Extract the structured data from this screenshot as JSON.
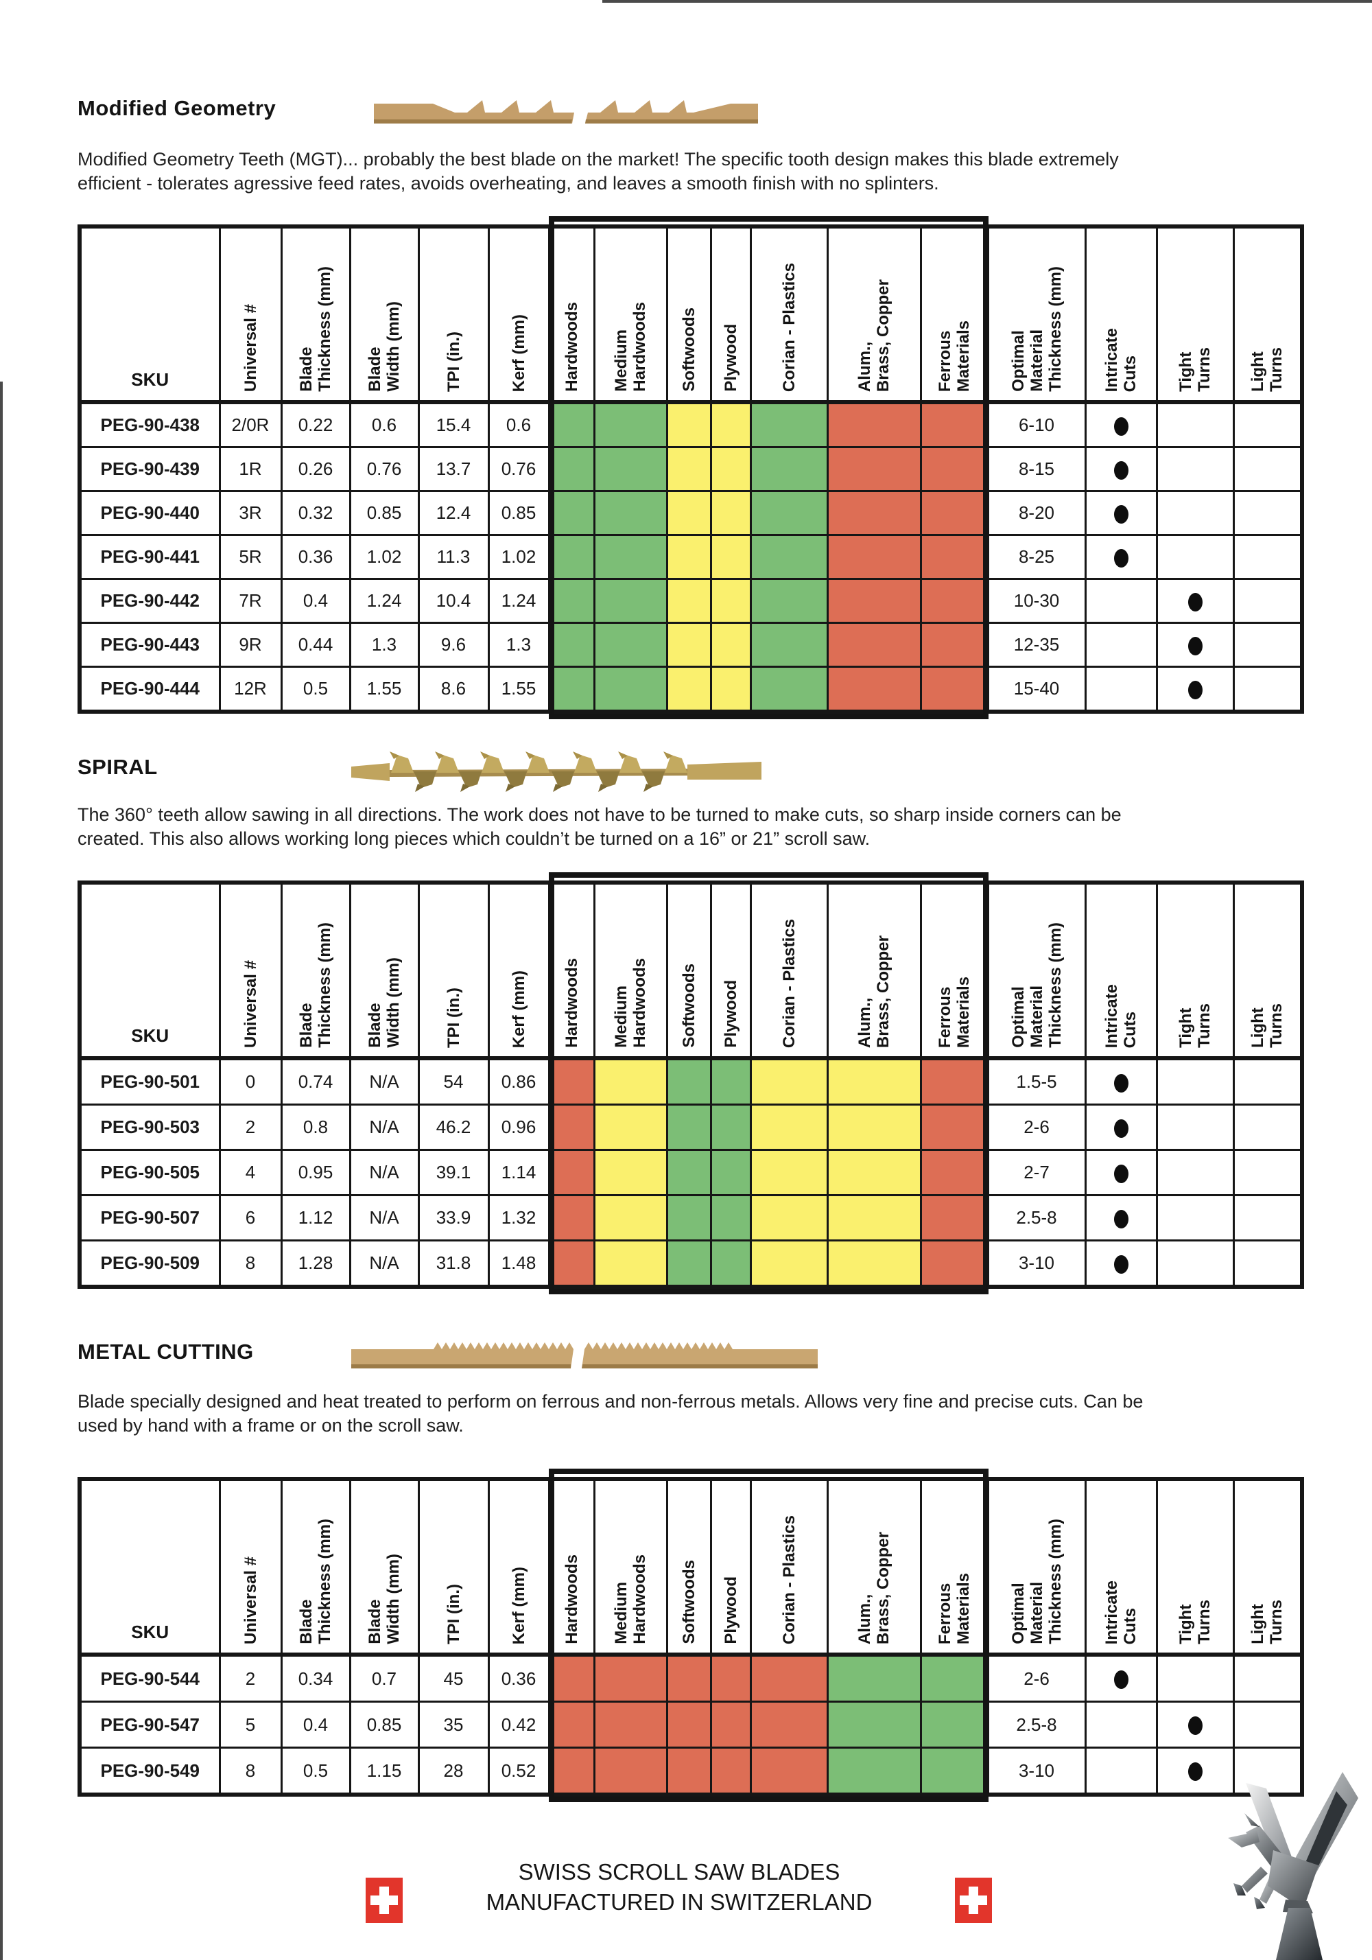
{
  "page": {
    "footer": {
      "line1": "SWISS SCROLL SAW BLADES",
      "line2": "MANUFACTURED IN SWITZERLAND"
    }
  },
  "legend_colors": {
    "G": "#7cbe76",
    "Y": "#faf06e",
    "R": "#dd6e55"
  },
  "table_columns": [
    {
      "key": "sku",
      "label": "SKU",
      "orientation": "horizontal"
    },
    {
      "key": "universal",
      "label": "Universal #",
      "orientation": "vertical"
    },
    {
      "key": "blade_thickness",
      "label": "Blade\nThickness (mm)",
      "orientation": "vertical"
    },
    {
      "key": "blade_width",
      "label": "Blade\nWidth (mm)",
      "orientation": "vertical"
    },
    {
      "key": "tpi",
      "label": "TPI (in.)",
      "orientation": "vertical"
    },
    {
      "key": "kerf",
      "label": "Kerf (mm)",
      "orientation": "vertical"
    },
    {
      "key": "hardwoods",
      "label": "Hardwoods",
      "orientation": "vertical",
      "material_index": 0
    },
    {
      "key": "medium_hardwoods",
      "label": "Medium\nHardwoods",
      "orientation": "vertical",
      "material_index": 1
    },
    {
      "key": "softwoods",
      "label": "Softwoods",
      "orientation": "vertical",
      "material_index": 2
    },
    {
      "key": "plywood",
      "label": "Plywood",
      "orientation": "vertical",
      "material_index": 3
    },
    {
      "key": "corian_plastics",
      "label": "Corian - Plastics",
      "orientation": "vertical",
      "material_index": 4
    },
    {
      "key": "alum_brass_copper",
      "label": "Alum.,\nBrass, Copper",
      "orientation": "vertical",
      "material_index": 5
    },
    {
      "key": "ferrous_materials",
      "label": "Ferrous\nMaterials",
      "orientation": "vertical",
      "material_index": 6
    },
    {
      "key": "optimal",
      "label": "Optimal\nMaterial\nThickness (mm)",
      "orientation": "vertical"
    },
    {
      "key": "intricate",
      "label": "Intricate\nCuts",
      "orientation": "vertical",
      "dot": true
    },
    {
      "key": "tight",
      "label": "Tight\nTurns",
      "orientation": "vertical",
      "dot": true
    },
    {
      "key": "light",
      "label": "Light\nTurns",
      "orientation": "vertical",
      "dot": true
    }
  ],
  "sections": [
    {
      "title": "Modified Geometry",
      "description": "Modified Geometry Teeth (MGT)... probably the best blade on the market! The specific tooth design makes this blade extremely\nefficient - tolerates agressive feed rates, avoids overheating, and leaves a smooth finish with no splinters.",
      "rows": [
        {
          "sku": "PEG-90-438",
          "universal": "2/0R",
          "blade_thickness": "0.22",
          "blade_width": "0.6",
          "tpi": "15.4",
          "kerf": "0.6",
          "materials": [
            "G",
            "G",
            "Y",
            "Y",
            "G",
            "R",
            "R"
          ],
          "optimal": "6-10",
          "intricate": true,
          "tight": false,
          "light": false
        },
        {
          "sku": "PEG-90-439",
          "universal": "1R",
          "blade_thickness": "0.26",
          "blade_width": "0.76",
          "tpi": "13.7",
          "kerf": "0.76",
          "materials": [
            "G",
            "G",
            "Y",
            "Y",
            "G",
            "R",
            "R"
          ],
          "optimal": "8-15",
          "intricate": true,
          "tight": false,
          "light": false
        },
        {
          "sku": "PEG-90-440",
          "universal": "3R",
          "blade_thickness": "0.32",
          "blade_width": "0.85",
          "tpi": "12.4",
          "kerf": "0.85",
          "materials": [
            "G",
            "G",
            "Y",
            "Y",
            "G",
            "R",
            "R"
          ],
          "optimal": "8-20",
          "intricate": true,
          "tight": false,
          "light": false
        },
        {
          "sku": "PEG-90-441",
          "universal": "5R",
          "blade_thickness": "0.36",
          "blade_width": "1.02",
          "tpi": "11.3",
          "kerf": "1.02",
          "materials": [
            "G",
            "G",
            "Y",
            "Y",
            "G",
            "R",
            "R"
          ],
          "optimal": "8-25",
          "intricate": true,
          "tight": false,
          "light": false
        },
        {
          "sku": "PEG-90-442",
          "universal": "7R",
          "blade_thickness": "0.4",
          "blade_width": "1.24",
          "tpi": "10.4",
          "kerf": "1.24",
          "materials": [
            "G",
            "G",
            "Y",
            "Y",
            "G",
            "R",
            "R"
          ],
          "optimal": "10-30",
          "intricate": false,
          "tight": true,
          "light": false
        },
        {
          "sku": "PEG-90-443",
          "universal": "9R",
          "blade_thickness": "0.44",
          "blade_width": "1.3",
          "tpi": "9.6",
          "kerf": "1.3",
          "materials": [
            "G",
            "G",
            "Y",
            "Y",
            "G",
            "R",
            "R"
          ],
          "optimal": "12-35",
          "intricate": false,
          "tight": true,
          "light": false
        },
        {
          "sku": "PEG-90-444",
          "universal": "12R",
          "blade_thickness": "0.5",
          "blade_width": "1.55",
          "tpi": "8.6",
          "kerf": "1.55",
          "materials": [
            "G",
            "G",
            "Y",
            "Y",
            "G",
            "R",
            "R"
          ],
          "optimal": "15-40",
          "intricate": false,
          "tight": true,
          "light": false
        }
      ]
    },
    {
      "title": "SPIRAL",
      "description": "The 360° teeth allow sawing in all directions. The work does not have to be turned to make cuts, so sharp inside corners can be\ncreated. This also allows working long pieces which couldn’t be turned on a 16” or 21” scroll saw.",
      "rows": [
        {
          "sku": "PEG-90-501",
          "universal": "0",
          "blade_thickness": "0.74",
          "blade_width": "N/A",
          "tpi": "54",
          "kerf": "0.86",
          "materials": [
            "R",
            "Y",
            "G",
            "G",
            "Y",
            "Y",
            "R"
          ],
          "optimal": "1.5-5",
          "intricate": true,
          "tight": false,
          "light": false
        },
        {
          "sku": "PEG-90-503",
          "universal": "2",
          "blade_thickness": "0.8",
          "blade_width": "N/A",
          "tpi": "46.2",
          "kerf": "0.96",
          "materials": [
            "R",
            "Y",
            "G",
            "G",
            "Y",
            "Y",
            "R"
          ],
          "optimal": "2-6",
          "intricate": true,
          "tight": false,
          "light": false
        },
        {
          "sku": "PEG-90-505",
          "universal": "4",
          "blade_thickness": "0.95",
          "blade_width": "N/A",
          "tpi": "39.1",
          "kerf": "1.14",
          "materials": [
            "R",
            "Y",
            "G",
            "G",
            "Y",
            "Y",
            "R"
          ],
          "optimal": "2-7",
          "intricate": true,
          "tight": false,
          "light": false
        },
        {
          "sku": "PEG-90-507",
          "universal": "6",
          "blade_thickness": "1.12",
          "blade_width": "N/A",
          "tpi": "33.9",
          "kerf": "1.32",
          "materials": [
            "R",
            "Y",
            "G",
            "G",
            "Y",
            "Y",
            "R"
          ],
          "optimal": "2.5-8",
          "intricate": true,
          "tight": false,
          "light": false
        },
        {
          "sku": "PEG-90-509",
          "universal": "8",
          "blade_thickness": "1.28",
          "blade_width": "N/A",
          "tpi": "31.8",
          "kerf": "1.48",
          "materials": [
            "R",
            "Y",
            "G",
            "G",
            "Y",
            "Y",
            "R"
          ],
          "optimal": "3-10",
          "intricate": true,
          "tight": false,
          "light": false
        }
      ]
    },
    {
      "title": "METAL CUTTING",
      "description": "Blade specially designed and heat treated to perform on ferrous and non-ferrous metals. Allows very fine and precise cuts. Can be\nused by hand with a frame or on the scroll saw.",
      "rows": [
        {
          "sku": "PEG-90-544",
          "universal": "2",
          "blade_thickness": "0.34",
          "blade_width": "0.7",
          "tpi": "45",
          "kerf": "0.36",
          "materials": [
            "R",
            "R",
            "R",
            "R",
            "R",
            "G",
            "G"
          ],
          "optimal": "2-6",
          "intricate": true,
          "tight": false,
          "light": false
        },
        {
          "sku": "PEG-90-547",
          "universal": "5",
          "blade_thickness": "0.4",
          "blade_width": "0.85",
          "tpi": "35",
          "kerf": "0.42",
          "materials": [
            "R",
            "R",
            "R",
            "R",
            "R",
            "G",
            "G"
          ],
          "optimal": "2.5-8",
          "intricate": false,
          "tight": true,
          "light": false
        },
        {
          "sku": "PEG-90-549",
          "universal": "8",
          "blade_thickness": "0.5",
          "blade_width": "1.15",
          "tpi": "28",
          "kerf": "0.52",
          "materials": [
            "R",
            "R",
            "R",
            "R",
            "R",
            "G",
            "G"
          ],
          "optimal": "3-10",
          "intricate": false,
          "tight": true,
          "light": false
        }
      ]
    }
  ]
}
